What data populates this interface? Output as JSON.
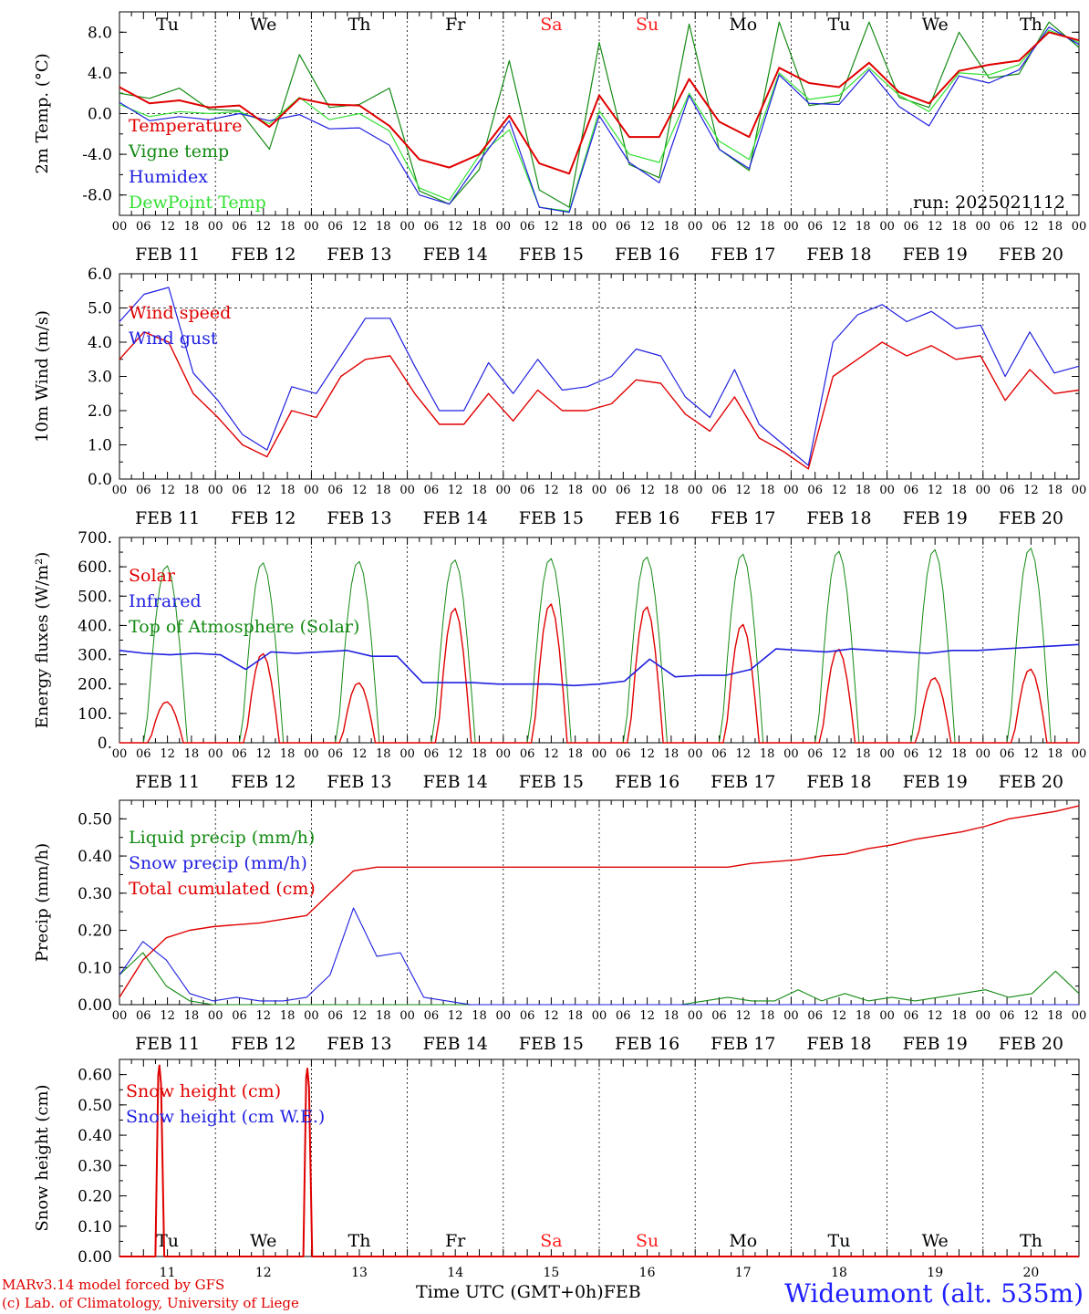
{
  "footer": {
    "model": "MARv3.14 model forced by GFS",
    "credit": "(c) Lab. of Climatology, University of Liege",
    "xaxis_title": "Time UTC (GMT+0h)",
    "month": "FEB",
    "station": "Wideumont (alt. 535m)"
  },
  "colors": {
    "red": "#e00000",
    "green": "#138a13",
    "blue": "#1f1fe0",
    "lightgreen": "#33e033",
    "title_red": "#ff2020"
  },
  "days": {
    "labels": [
      "Tu",
      "We",
      "Th",
      "Fr",
      "Sa",
      "Su",
      "Mo",
      "Tu",
      "We",
      "Th"
    ],
    "weekend": [
      false,
      false,
      false,
      false,
      true,
      true,
      false,
      false,
      false,
      false
    ],
    "dates": [
      "FEB 11",
      "FEB 12",
      "FEB 13",
      "FEB 14",
      "FEB 15",
      "FEB 16",
      "FEB 17",
      "FEB 18",
      "FEB 19",
      "FEB 20"
    ],
    "day_numbers": [
      "11",
      "12",
      "13",
      "14",
      "15",
      "16",
      "17",
      "18",
      "19",
      "20"
    ],
    "hour_ticks": [
      "00",
      "06",
      "12",
      "18"
    ],
    "end_tick": "00"
  },
  "chart_data": [
    {
      "type": "line",
      "ylabel": "2m Temp. (°C)",
      "ylim": [
        -10,
        10
      ],
      "yticks": [
        "-8.0",
        "-4.0",
        "0.0",
        "4.0",
        "8.0"
      ],
      "ytick_values": [
        -8,
        -4,
        0,
        4,
        8
      ],
      "ref_line": 0,
      "annotation": "run: 2025021112",
      "x_hours": [
        0,
        6,
        12,
        18,
        24,
        30,
        36,
        42,
        48,
        54,
        60,
        66,
        72,
        78,
        84,
        90,
        96,
        102,
        108,
        114,
        120,
        126,
        132,
        138,
        144,
        150,
        156,
        162,
        168,
        174,
        180,
        186,
        192,
        198,
        204,
        210,
        216,
        222,
        228,
        234,
        240
      ],
      "series": [
        {
          "name": "Temperature",
          "color": "red",
          "values": [
            2.6,
            1.0,
            1.3,
            0.6,
            0.8,
            -1.3,
            1.5,
            0.9,
            0.8,
            -1.2,
            -4.5,
            -5.3,
            -4.0,
            -0.2,
            -4.9,
            -5.9,
            1.8,
            -2.3,
            -2.3,
            3.4,
            -0.8,
            -2.3,
            4.5,
            3.0,
            2.6,
            5.0,
            2.1,
            1.0,
            4.2,
            4.8,
            5.2,
            8.0,
            7.2
          ]
        },
        {
          "name": "Vigne temp",
          "color": "green",
          "values": [
            2.0,
            1.5,
            2.5,
            0.4,
            0.3,
            -3.5,
            5.8,
            0.6,
            0.9,
            2.5,
            -7.6,
            -8.9,
            -5.5,
            5.2,
            -7.5,
            -9.2,
            7.0,
            -5.0,
            -6.3,
            8.8,
            -3.5,
            -5.6,
            9.0,
            0.8,
            1.2,
            9.0,
            1.6,
            0.6,
            8.0,
            3.5,
            3.9,
            9.0,
            6.5
          ]
        },
        {
          "name": "Humidex",
          "color": "blue",
          "values": [
            1.1,
            -0.7,
            -0.3,
            -0.6,
            0.0,
            -0.7,
            -0.1,
            -1.5,
            -1.4,
            -3.1,
            -8.0,
            -8.9,
            -4.7,
            -0.7,
            -9.2,
            -9.7,
            -0.2,
            -4.8,
            -6.8,
            1.8,
            -3.5,
            -5.4,
            3.8,
            1.0,
            0.9,
            4.3,
            0.7,
            -1.2,
            3.7,
            3.0,
            4.3,
            8.5,
            6.8
          ]
        },
        {
          "name": "DewPoint Temp",
          "color": "lightgreen",
          "values": [
            0.9,
            -0.3,
            0.2,
            0.0,
            0.2,
            -1.0,
            1.6,
            -0.6,
            0.0,
            -1.7,
            -7.3,
            -8.5,
            -4.1,
            -1.6,
            -9.2,
            -9.6,
            0.3,
            -4.0,
            -4.8,
            2.0,
            -2.7,
            -4.5,
            4.0,
            1.4,
            1.8,
            4.5,
            1.8,
            0.2,
            4.0,
            3.8,
            4.8,
            8.2,
            7.0
          ]
        }
      ]
    },
    {
      "type": "line",
      "ylabel": "10m Wind (m/s)",
      "ylim": [
        0,
        6
      ],
      "yticks": [
        "0.0",
        "1.0",
        "2.0",
        "3.0",
        "4.0",
        "5.0",
        "6.0"
      ],
      "ytick_values": [
        0,
        1,
        2,
        3,
        4,
        5,
        6
      ],
      "ref_line": 5,
      "series": [
        {
          "name": "Wind speed",
          "color": "red",
          "values": [
            3.5,
            4.3,
            4.0,
            2.5,
            1.8,
            1.0,
            0.65,
            2.0,
            1.8,
            3.0,
            3.5,
            3.6,
            2.5,
            1.6,
            1.6,
            2.5,
            1.7,
            2.6,
            2.0,
            2.0,
            2.2,
            2.9,
            2.8,
            1.9,
            1.4,
            2.4,
            1.2,
            0.8,
            0.3,
            3.0,
            3.5,
            4.0,
            3.6,
            3.9,
            3.5,
            3.6,
            2.3,
            3.2,
            2.5,
            2.6
          ]
        },
        {
          "name": "Wind gust",
          "color": "blue",
          "values": [
            4.6,
            5.4,
            5.6,
            3.1,
            2.3,
            1.3,
            0.85,
            2.7,
            2.5,
            3.6,
            4.7,
            4.7,
            3.3,
            2.0,
            2.0,
            3.4,
            2.5,
            3.5,
            2.6,
            2.7,
            3.0,
            3.8,
            3.6,
            2.4,
            1.8,
            3.2,
            1.6,
            1.0,
            0.4,
            4.0,
            4.8,
            5.1,
            4.6,
            4.9,
            4.4,
            4.5,
            3.0,
            4.3,
            3.1,
            3.3
          ]
        }
      ]
    },
    {
      "type": "line",
      "ylabel": "Energy fluxes (W/m²)",
      "ylim": [
        0,
        700
      ],
      "yticks": [
        "0.",
        "100.",
        "200.",
        "300.",
        "400.",
        "500.",
        "600.",
        "700."
      ],
      "ytick_values": [
        0,
        100,
        200,
        300,
        400,
        500,
        600,
        700
      ],
      "series": [
        {
          "name": "Solar",
          "color": "red",
          "daily_peak": [
            140,
            305,
            205,
            460,
            475,
            465,
            405,
            320,
            222,
            252
          ]
        },
        {
          "name": "Infrared",
          "color": "blue",
          "values": [
            315,
            305,
            300,
            305,
            300,
            250,
            310,
            305,
            310,
            315,
            295,
            295,
            205,
            205,
            205,
            200,
            200,
            200,
            195,
            200,
            210,
            285,
            225,
            230,
            230,
            250,
            320,
            315,
            310,
            320,
            315,
            310,
            305,
            315,
            315,
            320,
            325,
            330,
            335
          ]
        },
        {
          "name": "Top of Atmosphere (Solar)",
          "color": "green",
          "daily_peak": [
            605,
            615,
            620,
            625,
            630,
            635,
            645,
            655,
            660,
            665
          ]
        }
      ]
    },
    {
      "type": "line",
      "ylabel": "Precip (mm/h)",
      "ylim": [
        0,
        0.55
      ],
      "yticks": [
        "0.00",
        "0.10",
        "0.20",
        "0.30",
        "0.40",
        "0.50"
      ],
      "ytick_values": [
        0,
        0.1,
        0.2,
        0.3,
        0.4,
        0.5
      ],
      "series": [
        {
          "name": "Liquid precip (mm/h)",
          "color": "green",
          "values": [
            0.08,
            0.14,
            0.05,
            0.01,
            0,
            0,
            0,
            0,
            0,
            0,
            0,
            0,
            0,
            0,
            0,
            0,
            0,
            0,
            0,
            0,
            0,
            0,
            0,
            0,
            0,
            0.01,
            0.02,
            0.01,
            0.01,
            0.04,
            0.01,
            0.03,
            0.01,
            0.02,
            0.01,
            0.02,
            0.03,
            0.04,
            0.02,
            0.03,
            0.09,
            0.03
          ]
        },
        {
          "name": "Snow precip (mm/h)",
          "color": "blue",
          "values": [
            0.08,
            0.17,
            0.12,
            0.03,
            0.01,
            0.02,
            0.01,
            0.01,
            0.02,
            0.08,
            0.26,
            0.13,
            0.14,
            0.02,
            0.01,
            0,
            0,
            0,
            0,
            0,
            0,
            0,
            0,
            0,
            0,
            0,
            0,
            0,
            0,
            0,
            0,
            0,
            0,
            0,
            0,
            0,
            0,
            0,
            0,
            0,
            0,
            0
          ]
        },
        {
          "name": "Total cumulated (cm)",
          "color": "red",
          "values": [
            0.02,
            0.12,
            0.18,
            0.2,
            0.21,
            0.215,
            0.22,
            0.23,
            0.24,
            0.3,
            0.36,
            0.37,
            0.37,
            0.37,
            0.37,
            0.37,
            0.37,
            0.37,
            0.37,
            0.37,
            0.37,
            0.37,
            0.37,
            0.37,
            0.37,
            0.37,
            0.37,
            0.38,
            0.385,
            0.39,
            0.4,
            0.405,
            0.42,
            0.43,
            0.445,
            0.455,
            0.465,
            0.48,
            0.5,
            0.51,
            0.52,
            0.535
          ]
        }
      ]
    },
    {
      "type": "line",
      "ylabel": "Snow height (cm)",
      "ylim": [
        0,
        0.65
      ],
      "yticks": [
        "0.00",
        "0.10",
        "0.20",
        "0.30",
        "0.40",
        "0.50",
        "0.60"
      ],
      "ytick_values": [
        0,
        0.1,
        0.2,
        0.3,
        0.4,
        0.5,
        0.6
      ],
      "series": [
        {
          "name": "Snow height (cm)",
          "color": "red",
          "spikes": [
            {
              "hour": 10,
              "value": 0.63
            },
            {
              "hour": 47,
              "value": 0.62
            }
          ]
        },
        {
          "name": "Snow height (cm W.E.)",
          "color": "blue",
          "values": []
        }
      ]
    }
  ]
}
